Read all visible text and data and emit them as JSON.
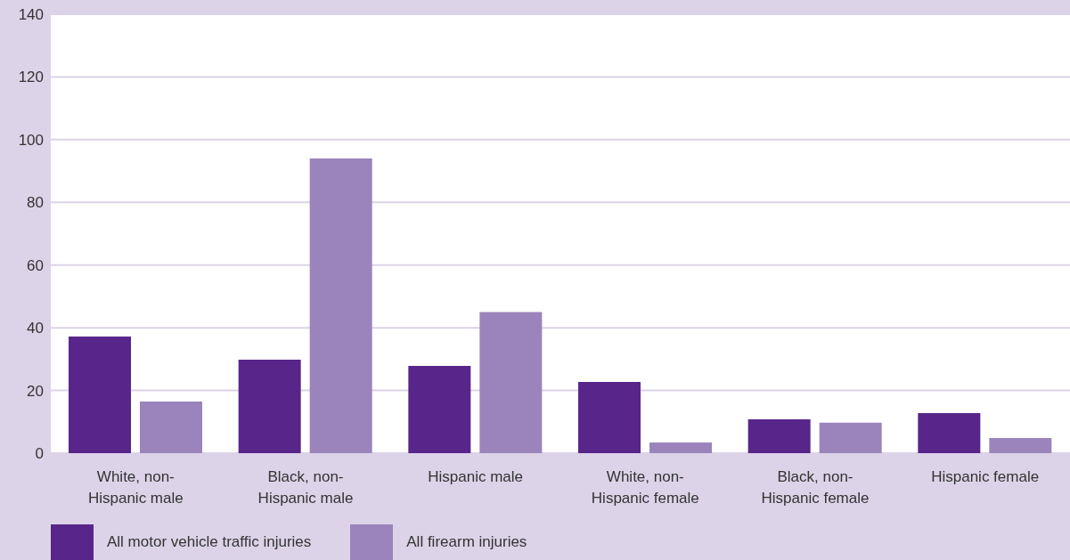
{
  "chart_data": {
    "type": "bar",
    "categories": [
      "White, non-Hispanic male",
      "Black, non-Hispanic male",
      "Hispanic male",
      "White, non-Hispanic female",
      "Black, non-Hispanic female",
      "Hispanic female"
    ],
    "series": [
      {
        "name": "All motor vehicle traffic injuries",
        "color": "#58268a",
        "values": [
          37.2,
          29.8,
          27.8,
          22.7,
          10.8,
          12.8
        ]
      },
      {
        "name": "All firearm injuries",
        "color": "#9b84bc",
        "values": [
          16.5,
          94,
          45,
          3.4,
          9.7,
          4.8
        ]
      }
    ],
    "ylim": [
      0,
      140
    ],
    "yticks": [
      0,
      20,
      40,
      60,
      80,
      100,
      120,
      140
    ],
    "grid": "y",
    "legend": "bottom left"
  }
}
